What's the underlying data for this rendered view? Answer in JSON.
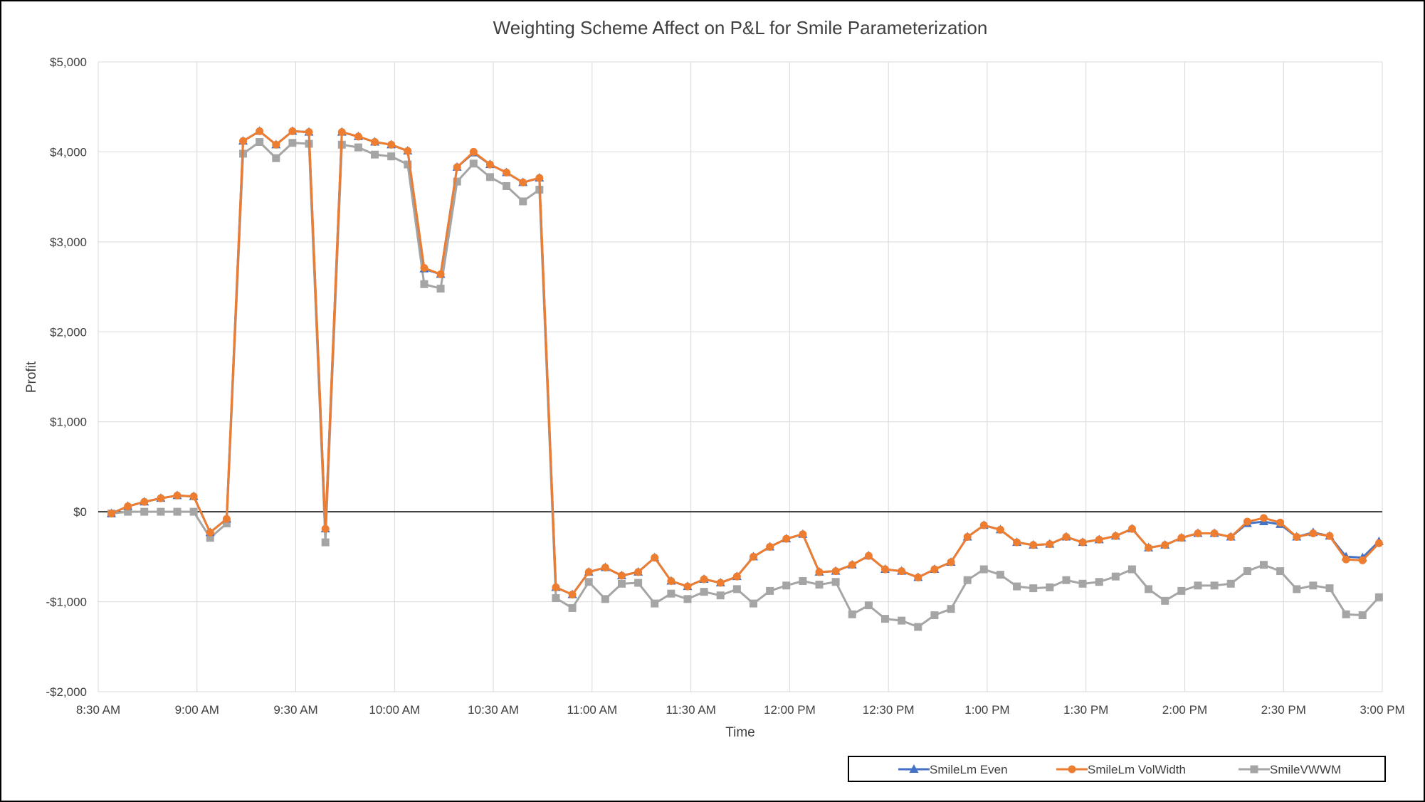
{
  "chart_data": {
    "type": "line",
    "title": "Weighting Scheme Affect on P&L for Smile Parameterization",
    "xlabel": "Time",
    "ylabel": "Profit",
    "ylim": [
      -2000,
      5000
    ],
    "y_ticks": [
      5000,
      4000,
      3000,
      2000,
      1000,
      0,
      -1000,
      -2000
    ],
    "y_tick_labels": [
      "$5,000",
      "$4,000",
      "$3,000",
      "$2,000",
      "$1,000",
      "$0",
      "-$1,000",
      "-$2,000"
    ],
    "x_range_minutes": [
      510,
      900
    ],
    "x_tick_labels": [
      "8:30 AM",
      "9:00 AM",
      "9:30 AM",
      "10:00 AM",
      "10:30 AM",
      "11:00 AM",
      "11:30 AM",
      "12:00 PM",
      "12:30 PM",
      "1:00 PM",
      "1:30 PM",
      "2:00 PM",
      "2:30 PM",
      "3:00 PM"
    ],
    "grid": true,
    "legend_position": "bottom-right",
    "x": [
      "8:34 AM",
      "8:39 AM",
      "8:44 AM",
      "8:49 AM",
      "8:54 AM",
      "8:59 AM",
      "9:04 AM",
      "9:09 AM",
      "9:14 AM",
      "9:19 AM",
      "9:24 AM",
      "9:29 AM",
      "9:34 AM",
      "9:39 AM",
      "9:44 AM",
      "9:49 AM",
      "9:54 AM",
      "9:59 AM",
      "10:04 AM",
      "10:09 AM",
      "10:14 AM",
      "10:19 AM",
      "10:24 AM",
      "10:29 AM",
      "10:34 AM",
      "10:39 AM",
      "10:44 AM",
      "10:49 AM",
      "10:54 AM",
      "10:59 AM",
      "11:04 AM",
      "11:09 AM",
      "11:14 AM",
      "11:19 AM",
      "11:24 AM",
      "11:29 AM",
      "11:34 AM",
      "11:39 AM",
      "11:44 AM",
      "11:49 AM",
      "11:54 AM",
      "11:59 AM",
      "12:04 PM",
      "12:09 PM",
      "12:14 PM",
      "12:19 PM",
      "12:24 PM",
      "12:29 PM",
      "12:34 PM",
      "12:39 PM",
      "12:44 PM",
      "12:49 PM",
      "12:54 PM",
      "12:59 PM",
      "1:04 PM",
      "1:09 PM",
      "1:14 PM",
      "1:19 PM",
      "1:24 PM",
      "1:29 PM",
      "1:34 PM",
      "1:39 PM",
      "1:44 PM",
      "1:49 PM",
      "1:54 PM",
      "1:59 PM",
      "2:04 PM",
      "2:09 PM",
      "2:14 PM",
      "2:19 PM",
      "2:24 PM",
      "2:29 PM",
      "2:34 PM",
      "2:39 PM",
      "2:44 PM",
      "2:49 PM",
      "2:54 PM",
      "2:59 PM"
    ],
    "series": [
      {
        "name": "SmileLm Even",
        "color": "#4472C4",
        "marker": "triangle",
        "values": [
          -20,
          60,
          110,
          150,
          180,
          170,
          -230,
          -80,
          4120,
          4230,
          4080,
          4230,
          4220,
          -190,
          4220,
          4170,
          4110,
          4080,
          4010,
          2700,
          2640,
          3830,
          3990,
          3860,
          3770,
          3660,
          3710,
          -840,
          -920,
          -670,
          -620,
          -710,
          -670,
          -510,
          -770,
          -830,
          -750,
          -790,
          -720,
          -500,
          -390,
          -300,
          -250,
          -670,
          -660,
          -590,
          -490,
          -640,
          -660,
          -730,
          -640,
          -560,
          -280,
          -150,
          -200,
          -340,
          -370,
          -360,
          -280,
          -340,
          -310,
          -270,
          -190,
          -400,
          -370,
          -290,
          -240,
          -240,
          -280,
          -130,
          -110,
          -140,
          -280,
          -230,
          -270,
          -500,
          -510,
          -330
        ]
      },
      {
        "name": "SmileLm VolWidth",
        "color": "#ED7D31",
        "marker": "circle",
        "values": [
          -20,
          60,
          110,
          150,
          180,
          170,
          -230,
          -80,
          4120,
          4230,
          4080,
          4230,
          4220,
          -190,
          4220,
          4170,
          4110,
          4080,
          4010,
          2710,
          2640,
          3830,
          4000,
          3860,
          3770,
          3660,
          3710,
          -840,
          -920,
          -670,
          -620,
          -710,
          -670,
          -510,
          -770,
          -830,
          -750,
          -790,
          -720,
          -500,
          -390,
          -300,
          -250,
          -670,
          -660,
          -590,
          -490,
          -640,
          -660,
          -730,
          -640,
          -560,
          -280,
          -150,
          -200,
          -340,
          -370,
          -360,
          -280,
          -340,
          -310,
          -270,
          -190,
          -400,
          -370,
          -290,
          -240,
          -240,
          -280,
          -110,
          -70,
          -120,
          -280,
          -240,
          -270,
          -530,
          -540,
          -350
        ]
      },
      {
        "name": "SmileVWWM",
        "color": "#A5A5A5",
        "marker": "square",
        "values": [
          -20,
          0,
          0,
          0,
          0,
          0,
          -290,
          -130,
          3980,
          4110,
          3930,
          4100,
          4090,
          -340,
          4080,
          4050,
          3970,
          3950,
          3860,
          2530,
          2480,
          3670,
          3870,
          3720,
          3620,
          3450,
          3580,
          -960,
          -1070,
          -780,
          -970,
          -800,
          -790,
          -1020,
          -910,
          -970,
          -890,
          -930,
          -860,
          -1020,
          -880,
          -820,
          -770,
          -810,
          -780,
          -1140,
          -1040,
          -1190,
          -1210,
          -1280,
          -1150,
          -1080,
          -760,
          -640,
          -700,
          -830,
          -850,
          -840,
          -760,
          -800,
          -780,
          -720,
          -640,
          -860,
          -990,
          -880,
          -820,
          -820,
          -800,
          -660,
          -590,
          -660,
          -860,
          -820,
          -850,
          -1140,
          -1150,
          -950
        ]
      }
    ]
  }
}
